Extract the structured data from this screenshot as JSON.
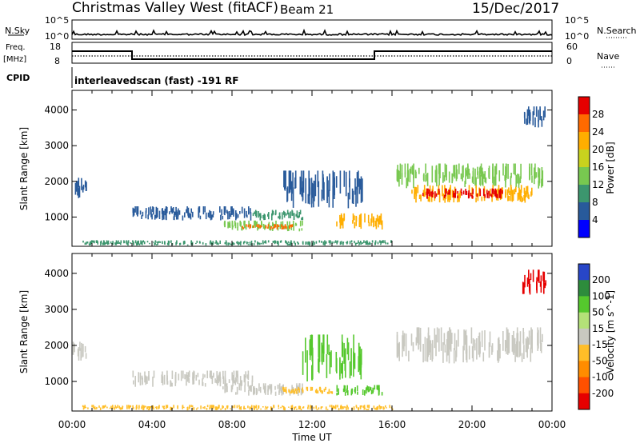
{
  "header": {
    "site": "Christmas Valley West (fitACF)",
    "beam": "Beam 21",
    "date": "15/Dec/2017"
  },
  "strips": {
    "nsky_label": "N.Sky",
    "nsky_ticks": [
      "10^5",
      "10^0"
    ],
    "nsearch_label": "N.Search",
    "nsearch_ticks_right": [
      "10^5",
      "10^0"
    ],
    "freq_label": "Freq.",
    "freq_unit": "[MHz]",
    "freq_ticks": [
      "18",
      "8"
    ],
    "nave_label": "Nave",
    "nave_ticks": [
      "60",
      "0"
    ],
    "cpid_label": "CPID",
    "cpid_text": "interleavedscan (fast) -191 RF"
  },
  "chart_data": [
    {
      "type": "heatmap",
      "name": "power",
      "ylabel": "Slant Range [km]",
      "y_ticks": [
        "4000",
        "3000",
        "2000",
        "1000"
      ],
      "x_ticks": [
        "00:00",
        "04:00",
        "08:00",
        "12:00",
        "16:00",
        "20:00",
        "00:00"
      ],
      "xlabel": "Time UT",
      "ylim": [
        180,
        4550
      ],
      "xlim_hours": [
        0,
        24
      ],
      "colorbar": {
        "label": "Power [dB]",
        "tick_labels": [
          "28",
          "24",
          "20",
          "16",
          "12",
          "8",
          "4"
        ],
        "colors": [
          "#e60000",
          "#ff6a00",
          "#ffae00",
          "#c8d21e",
          "#78c850",
          "#3c966e",
          "#285a9b",
          "#0000ff"
        ]
      },
      "regions": [
        {
          "t0": 0.0,
          "t1": 0.7,
          "r0": 1500,
          "r1": 2100,
          "level": 6
        },
        {
          "t0": 0.5,
          "t1": 16.0,
          "r0": 200,
          "r1": 350,
          "level": 5
        },
        {
          "t0": 3.0,
          "t1": 9.0,
          "r0": 900,
          "r1": 1300,
          "level": 6
        },
        {
          "t0": 7.5,
          "t1": 11.5,
          "r0": 600,
          "r1": 900,
          "level": 4
        },
        {
          "t0": 8.5,
          "t1": 11.0,
          "r0": 650,
          "r1": 800,
          "level": 1
        },
        {
          "t0": 9.0,
          "t1": 11.5,
          "r0": 900,
          "r1": 1200,
          "level": 5
        },
        {
          "t0": 13.2,
          "t1": 15.5,
          "r0": 650,
          "r1": 1100,
          "level": 2
        },
        {
          "t0": 10.5,
          "t1": 14.5,
          "r0": 1200,
          "r1": 2300,
          "level": 6
        },
        {
          "t0": 16.2,
          "t1": 23.5,
          "r0": 1800,
          "r1": 2500,
          "level": 4
        },
        {
          "t0": 16.8,
          "t1": 23.0,
          "r0": 1400,
          "r1": 1900,
          "level": 2
        },
        {
          "t0": 17.5,
          "t1": 21.5,
          "r0": 1500,
          "r1": 1800,
          "level": 0
        },
        {
          "t0": 22.5,
          "t1": 23.7,
          "r0": 3500,
          "r1": 4100,
          "level": 6
        }
      ]
    },
    {
      "type": "heatmap",
      "name": "velocity",
      "ylabel": "Slant Range [km]",
      "y_ticks": [
        "4000",
        "3000",
        "2000",
        "1000"
      ],
      "x_ticks": [
        "00:00",
        "04:00",
        "08:00",
        "12:00",
        "16:00",
        "20:00",
        "00:00"
      ],
      "xlabel": "Time UT",
      "ylim": [
        180,
        4550
      ],
      "xlim_hours": [
        0,
        24
      ],
      "colorbar": {
        "label": "Velocity [m s^-1]",
        "tick_labels": [
          "200",
          "100",
          "50",
          "15",
          "-15",
          "-50",
          "-100",
          "-200"
        ],
        "colors": [
          "#2846c8",
          "#2d8c3c",
          "#55c82d",
          "#b4e178",
          "#c8c8c0",
          "#ffbe28",
          "#ff8c00",
          "#ff5000",
          "#e60000"
        ]
      },
      "regions": [
        {
          "t0": 0.0,
          "t1": 0.7,
          "r0": 1500,
          "r1": 2100,
          "level": 4
        },
        {
          "t0": 0.5,
          "t1": 16.0,
          "r0": 200,
          "r1": 350,
          "level": 5
        },
        {
          "t0": 3.0,
          "t1": 9.0,
          "r0": 850,
          "r1": 1300,
          "level": 4
        },
        {
          "t0": 7.5,
          "t1": 11.5,
          "r0": 600,
          "r1": 950,
          "level": 4
        },
        {
          "t0": 10.5,
          "t1": 13.0,
          "r0": 650,
          "r1": 850,
          "level": 5
        },
        {
          "t0": 13.2,
          "t1": 15.5,
          "r0": 600,
          "r1": 900,
          "level": 2
        },
        {
          "t0": 11.5,
          "t1": 14.5,
          "r0": 1000,
          "r1": 2300,
          "level": 2
        },
        {
          "t0": 16.2,
          "t1": 23.5,
          "r0": 1500,
          "r1": 2500,
          "level": 4
        },
        {
          "t0": 22.5,
          "t1": 23.7,
          "r0": 3400,
          "r1": 4100,
          "level": 8
        }
      ]
    }
  ]
}
